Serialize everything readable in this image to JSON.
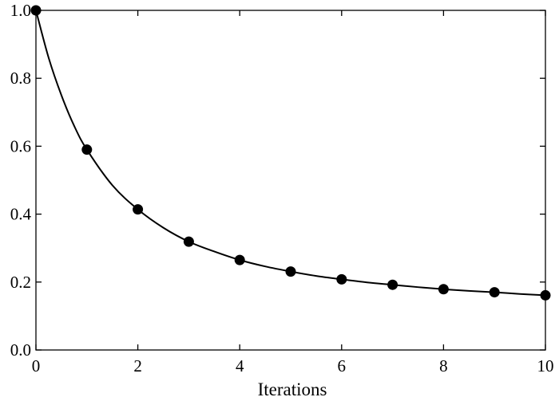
{
  "chart_data": {
    "type": "scatter",
    "title": "",
    "xlabel": "Iterations",
    "ylabel": "",
    "xlim": [
      0,
      10
    ],
    "ylim": [
      0,
      1.0
    ],
    "x_ticks": [
      0,
      2,
      4,
      6,
      8,
      10
    ],
    "y_ticks": [
      0.0,
      0.2,
      0.4,
      0.6,
      0.8,
      1.0
    ],
    "x_tick_labels": [
      "0",
      "2",
      "4",
      "6",
      "8",
      "10"
    ],
    "y_tick_labels": [
      "0.0",
      "0.2",
      "0.4",
      "0.6",
      "0.8",
      "1.0"
    ],
    "grid": false,
    "legend": "none",
    "series": [
      {
        "style": "markers",
        "color": "#000000",
        "x": [
          0,
          1,
          2,
          3,
          4,
          5,
          6,
          7,
          8,
          9,
          10
        ],
        "y": [
          1.0,
          0.59,
          0.414,
          0.319,
          0.265,
          0.231,
          0.208,
          0.192,
          0.179,
          0.17,
          0.161
        ]
      },
      {
        "style": "line",
        "color": "#000000",
        "x": [
          0,
          0.25,
          0.5,
          0.75,
          1,
          1.5,
          2,
          2.5,
          3,
          3.5,
          4,
          4.5,
          5,
          5.5,
          6,
          6.5,
          7,
          7.5,
          8,
          8.5,
          9,
          9.5,
          10
        ],
        "y": [
          1.0,
          0.86,
          0.75,
          0.66,
          0.59,
          0.485,
          0.414,
          0.36,
          0.319,
          0.29,
          0.265,
          0.246,
          0.231,
          0.218,
          0.208,
          0.199,
          0.192,
          0.185,
          0.179,
          0.174,
          0.17,
          0.165,
          0.161
        ]
      }
    ]
  }
}
